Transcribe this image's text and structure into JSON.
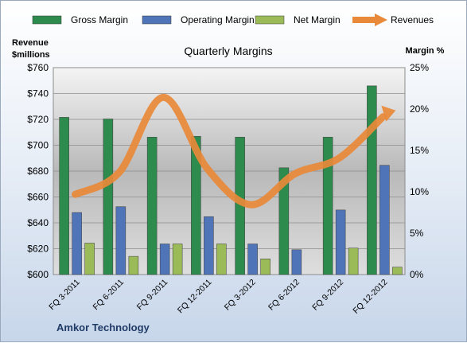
{
  "chart_data": {
    "type": "bar",
    "title": "Quarterly Margins",
    "company": "Amkor Technology",
    "left_axis_label_line1": "Revenue",
    "left_axis_label_line2": "$millions",
    "right_axis_label": "Margin %",
    "left_ylim": [
      600,
      760
    ],
    "left_ticks": [
      "$600",
      "$620",
      "$640",
      "$660",
      "$680",
      "$700",
      "$720",
      "$740",
      "$760"
    ],
    "left_tick_values": [
      600,
      620,
      640,
      660,
      680,
      700,
      720,
      740,
      760
    ],
    "right_ylim": [
      0,
      25
    ],
    "right_ticks": [
      "0%",
      "5%",
      "10%",
      "15%",
      "20%",
      "25%"
    ],
    "right_tick_values": [
      0,
      5,
      10,
      15,
      20,
      25
    ],
    "categories": [
      "FQ 3-2011",
      "FQ 6-2011",
      "FQ 9-2011",
      "FQ 12-2011",
      "FQ 3-2012",
      "FQ 6-2012",
      "FQ 9-2012",
      "FQ 12-2012"
    ],
    "series": [
      {
        "name": "Gross Margin",
        "type": "bar",
        "axis": "right",
        "color": "#2e8b4e",
        "values": [
          19,
          18.8,
          16.6,
          16.7,
          16.6,
          12.9,
          16.6,
          22.8
        ]
      },
      {
        "name": "Operating Margin",
        "type": "bar",
        "axis": "right",
        "color": "#4f74b8",
        "values": [
          7.5,
          8.2,
          3.7,
          7.0,
          3.7,
          3.0,
          7.8,
          13.2
        ]
      },
      {
        "name": "Net Margin",
        "type": "bar",
        "axis": "right",
        "color": "#9bbb59",
        "values": [
          3.8,
          2.2,
          3.7,
          3.7,
          1.9,
          0,
          3.2,
          0.9
        ]
      },
      {
        "name": "Revenues",
        "type": "line",
        "axis": "left",
        "color": "#e9893a",
        "values": [
          662,
          679,
          737,
          682,
          654,
          678,
          690,
          722
        ]
      }
    ],
    "grid": true,
    "legend_position": "top"
  }
}
